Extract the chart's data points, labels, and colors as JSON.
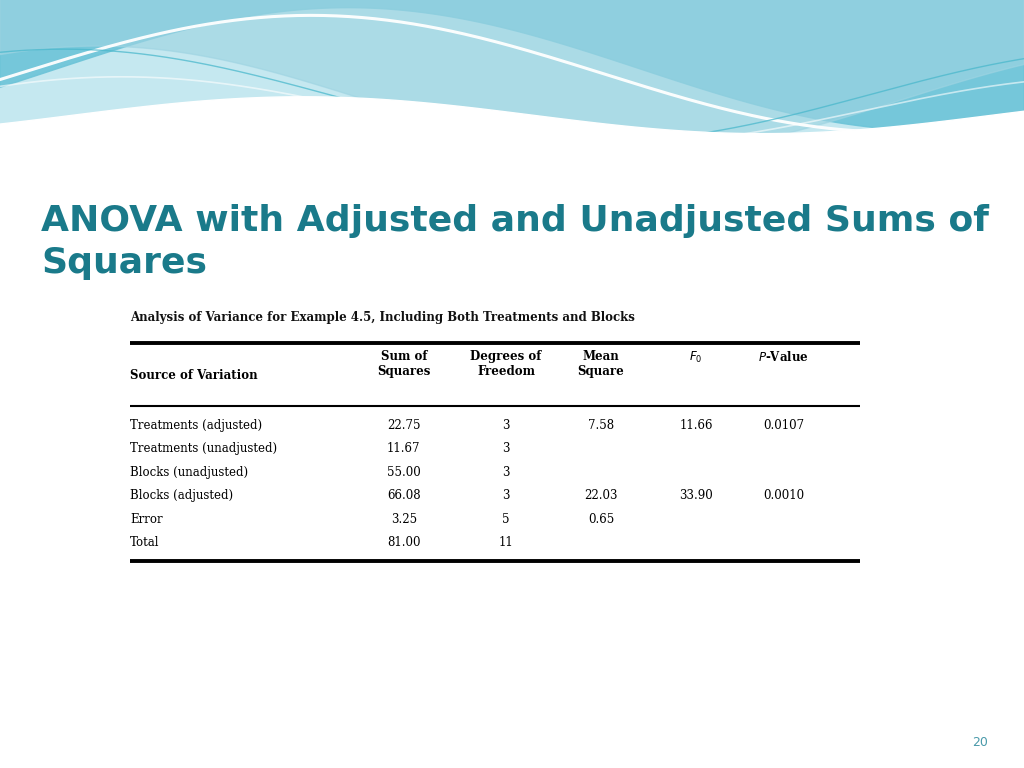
{
  "title_line1": "ANOVA with Adjusted and Unadjusted Sums of",
  "title_line2": "Squares",
  "title_color": "#1a7a8a",
  "background_color": "#ffffff",
  "slide_number": "20",
  "slide_number_color": "#4a9aaa",
  "table_title": "Analysis of Variance for Example 4.5, Including Both Treatments and Blocks",
  "col_headers": [
    "Source of Variation",
    "Sum of\nSquares",
    "Degrees of\nFreedom",
    "Mean\nSquare",
    "$F_0$",
    "$P$-Value"
  ],
  "rows": [
    [
      "Treatments (adjusted)",
      "22.75",
      "3",
      "7.58",
      "11.66",
      "0.0107"
    ],
    [
      "Treatments (unadjusted)",
      "11.67",
      "3",
      "",
      "",
      ""
    ],
    [
      "Blocks (unadjusted)",
      "55.00",
      "3",
      "",
      "",
      ""
    ],
    [
      "Blocks (adjusted)",
      "66.08",
      "3",
      "22.03",
      "33.90",
      "0.0010"
    ],
    [
      "Error",
      "3.25",
      "5",
      "0.65",
      "",
      ""
    ],
    [
      "Total",
      "81.00",
      "11",
      "",
      "",
      ""
    ]
  ],
  "wave_bg_color": "#add8e6",
  "wave1_color": "#7ecfe0",
  "wave2_color": "#b0dce8",
  "title_fontsize": 26,
  "table_title_fontsize": 8.5,
  "header_fontsize": 8.5,
  "cell_fontsize": 8.5
}
